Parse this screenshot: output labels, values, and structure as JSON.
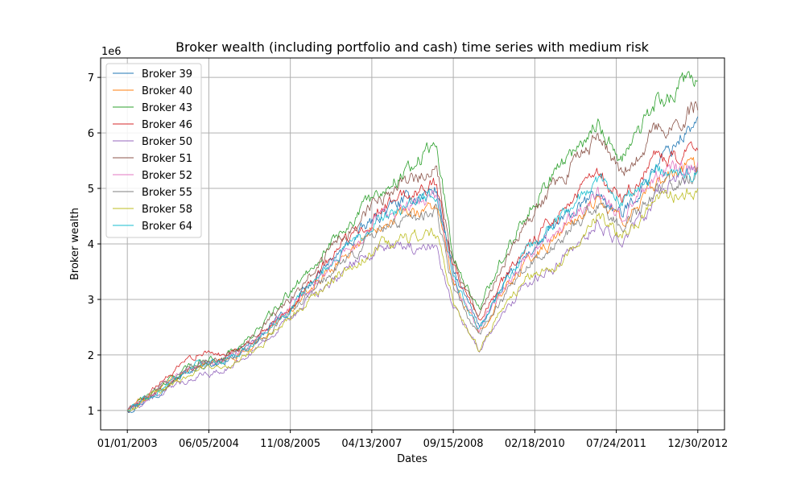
{
  "chart_data": {
    "type": "line",
    "title": "Broker wealth (including portfolio and cash) time series with medium risk",
    "xlabel": "Dates",
    "ylabel": "Broker wealth",
    "y_offset_label": "1e6",
    "x_tick_labels": [
      "01/01/2003",
      "06/05/2004",
      "11/08/2005",
      "04/13/2007",
      "09/15/2008",
      "02/18/2010",
      "07/24/2011",
      "12/30/2012"
    ],
    "y_tick_labels": [
      "1",
      "2",
      "3",
      "4",
      "5",
      "6",
      "7"
    ],
    "y_ticks": [
      1,
      2,
      3,
      4,
      5,
      6,
      7
    ],
    "ylim": [
      0.65,
      7.35
    ],
    "xlim": [
      "2002-07-14",
      "2013-06-19"
    ],
    "grid": true,
    "legend_position": "top-left",
    "x": [
      "2003-01-01",
      "2004-04-01",
      "2004-09-01",
      "2005-04-01",
      "2006-01-01",
      "2006-07-01",
      "2007-02-01",
      "2007-07-01",
      "2008-06-01",
      "2008-09-15",
      "2009-03-01",
      "2009-07-01",
      "2010-01-01",
      "2010-07-01",
      "2011-04-01",
      "2011-09-01",
      "2012-04-01",
      "2012-09-01",
      "2012-12-30"
    ],
    "series": [
      {
        "name": "Broker 39",
        "color": "#1f77b4",
        "values": [
          1.0,
          1.8,
          1.85,
          2.25,
          3.0,
          3.6,
          4.2,
          4.6,
          5.0,
          3.5,
          2.5,
          3.1,
          3.8,
          4.3,
          4.9,
          4.5,
          5.4,
          5.9,
          6.2
        ]
      },
      {
        "name": "Broker 40",
        "color": "#ff7f0e",
        "values": [
          1.0,
          1.85,
          1.85,
          2.2,
          2.95,
          3.5,
          4.05,
          4.45,
          4.7,
          3.3,
          2.4,
          3.0,
          3.7,
          4.1,
          4.8,
          4.4,
          5.0,
          5.3,
          5.5
        ]
      },
      {
        "name": "Broker 43",
        "color": "#2ca02c",
        "values": [
          1.0,
          1.9,
          1.95,
          2.4,
          3.3,
          3.95,
          4.6,
          5.0,
          5.8,
          3.8,
          2.8,
          3.6,
          4.6,
          5.3,
          6.2,
          5.5,
          6.5,
          6.8,
          7.0
        ]
      },
      {
        "name": "Broker 46",
        "color": "#d62728",
        "values": [
          1.0,
          2.05,
          2.0,
          2.3,
          3.05,
          3.7,
          4.3,
          4.7,
          5.1,
          3.6,
          2.55,
          3.2,
          3.95,
          4.5,
          5.3,
          4.8,
          5.5,
          5.5,
          5.7
        ]
      },
      {
        "name": "Broker 50",
        "color": "#9467bd",
        "values": [
          1.0,
          1.65,
          1.7,
          2.1,
          2.8,
          3.3,
          3.75,
          3.9,
          3.95,
          2.9,
          2.1,
          2.6,
          3.3,
          3.6,
          4.4,
          4.0,
          4.8,
          5.2,
          5.3
        ]
      },
      {
        "name": "Broker 51",
        "color": "#8c564b",
        "values": [
          1.0,
          1.85,
          1.9,
          2.35,
          3.15,
          3.8,
          4.45,
          4.85,
          5.4,
          3.7,
          2.7,
          3.45,
          4.4,
          5.1,
          5.9,
          5.3,
          6.0,
          6.2,
          6.5
        ]
      },
      {
        "name": "Broker 52",
        "color": "#e377c2",
        "values": [
          1.0,
          1.85,
          1.9,
          2.25,
          3.0,
          3.55,
          4.1,
          4.5,
          4.8,
          3.4,
          2.45,
          3.05,
          3.8,
          4.2,
          4.9,
          4.5,
          5.2,
          5.4,
          5.4
        ]
      },
      {
        "name": "Broker 55",
        "color": "#7f7f7f",
        "values": [
          1.0,
          1.85,
          1.85,
          2.2,
          2.9,
          3.4,
          3.95,
          4.3,
          4.6,
          3.2,
          2.3,
          2.9,
          3.6,
          4.0,
          4.7,
          4.3,
          4.9,
          5.1,
          5.2
        ]
      },
      {
        "name": "Broker 58",
        "color": "#bcbd22",
        "values": [
          1.0,
          1.75,
          1.75,
          2.1,
          2.8,
          3.3,
          3.75,
          4.0,
          4.2,
          3.0,
          2.1,
          2.7,
          3.4,
          3.6,
          4.5,
          4.1,
          4.8,
          4.9,
          5.0
        ]
      },
      {
        "name": "Broker 64",
        "color": "#17becf",
        "values": [
          1.0,
          1.85,
          1.85,
          2.25,
          3.0,
          3.55,
          4.1,
          4.5,
          4.9,
          3.4,
          2.45,
          3.1,
          3.9,
          4.4,
          5.2,
          4.7,
          5.3,
          5.2,
          5.3
        ]
      }
    ]
  }
}
